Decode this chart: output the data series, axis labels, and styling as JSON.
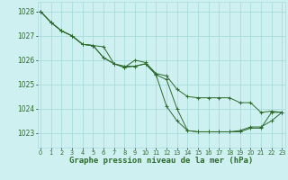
{
  "background_color": "#cff0f0",
  "grid_color": "#a0d8d8",
  "line_color": "#2d6b2d",
  "marker_color": "#2d6b2d",
  "xlabel": "Graphe pression niveau de la mer (hPa)",
  "xlabel_fontsize": 6.5,
  "ytick_fontsize": 5.5,
  "xtick_fontsize": 4.8,
  "yticks": [
    1023,
    1024,
    1025,
    1026,
    1027,
    1028
  ],
  "xticks": [
    0,
    1,
    2,
    3,
    4,
    5,
    6,
    7,
    8,
    9,
    10,
    11,
    12,
    13,
    14,
    15,
    16,
    17,
    18,
    19,
    20,
    21,
    22,
    23
  ],
  "xlim": [
    -0.3,
    23.3
  ],
  "ylim": [
    1022.4,
    1028.4
  ],
  "lines": [
    [
      1028.0,
      1027.55,
      1027.2,
      1027.0,
      1026.65,
      1026.6,
      1026.55,
      1025.85,
      1025.75,
      1025.75,
      1025.85,
      1025.4,
      1025.2,
      1024.0,
      1023.1,
      1023.05,
      1023.05,
      1023.05,
      1023.05,
      1023.05,
      1023.2,
      1023.2,
      1023.85,
      1023.85
    ],
    [
      1028.0,
      1027.55,
      1027.2,
      1027.0,
      1026.65,
      1026.6,
      1026.1,
      1025.85,
      1025.7,
      1025.75,
      1025.85,
      1025.4,
      1024.1,
      1023.5,
      1023.1,
      1023.05,
      1023.05,
      1023.05,
      1023.05,
      1023.1,
      1023.25,
      1023.25,
      1023.5,
      1023.85
    ],
    [
      1028.0,
      1027.55,
      1027.2,
      1027.0,
      1026.65,
      1026.6,
      1026.1,
      1025.85,
      1025.7,
      1026.0,
      1025.9,
      1025.45,
      1025.35,
      1024.8,
      1024.5,
      1024.45,
      1024.45,
      1024.45,
      1024.45,
      1024.25,
      1024.25,
      1023.85,
      1023.9,
      1023.85
    ]
  ]
}
